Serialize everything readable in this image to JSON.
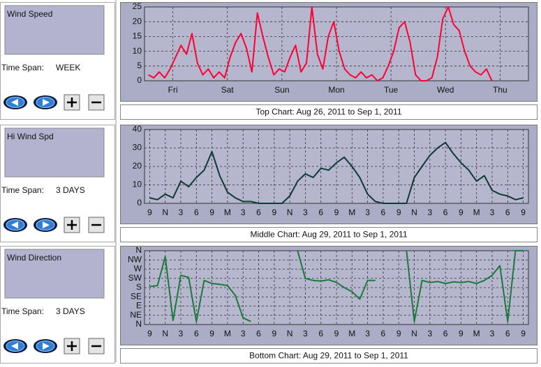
{
  "panels": [
    {
      "sensor_label": "Wind Speed",
      "time_span_label": "Time Span:",
      "time_span": "WEEK",
      "caption": "Top Chart:  Aug 26, 2011  to  Sep 1, 2011",
      "chart": {
        "type": "line",
        "x": [
          -0.45,
          -0.35,
          -0.25,
          -0.15,
          -0.05,
          0.05,
          0.15,
          0.25,
          0.35,
          0.45,
          0.55,
          0.65,
          0.75,
          0.85,
          0.95,
          1.05,
          1.15,
          1.25,
          1.35,
          1.45,
          1.55,
          1.65,
          1.75,
          1.85,
          1.95,
          2.05,
          2.15,
          2.25,
          2.35,
          2.45,
          2.55,
          2.65,
          2.75,
          2.85,
          2.95,
          3.05,
          3.15,
          3.25,
          3.35,
          3.45,
          3.55,
          3.65,
          3.75,
          3.85,
          3.95,
          4.05,
          4.15,
          4.25,
          4.35,
          4.45,
          4.55,
          4.65,
          4.75,
          4.85,
          4.95,
          5.05,
          5.15,
          5.25,
          5.35,
          5.45,
          5.55,
          5.65,
          5.75,
          5.85
        ],
        "series": [
          {
            "color": "#ff0033",
            "values": [
              2,
              1,
              3,
              1,
              4,
              8,
              12,
              9,
              16,
              6,
              2,
              4,
              1,
              3,
              1,
              8,
              13,
              16,
              11,
              3,
              23,
              15,
              8,
              2,
              4,
              3,
              8,
              12,
              3,
              6,
              25,
              9,
              4,
              15,
              20,
              10,
              4,
              2,
              1,
              3,
              1,
              2,
              0,
              1,
              5,
              10,
              18,
              20,
              13,
              2,
              0,
              0,
              1,
              8,
              21,
              25,
              19,
              17,
              10,
              5,
              3,
              2,
              4,
              0
            ]
          }
        ],
        "xlim": [
          -0.52,
          6.52
        ],
        "xticks": [
          {
            "value": 0,
            "label": "Fri"
          },
          {
            "value": 1,
            "label": "Sat"
          },
          {
            "value": 2,
            "label": "Sun"
          },
          {
            "value": 3,
            "label": "Mon"
          },
          {
            "value": 4,
            "label": "Tue"
          },
          {
            "value": 5,
            "label": "Wed"
          },
          {
            "value": 6,
            "label": "Thu"
          }
        ],
        "ylim": [
          0,
          25
        ],
        "yticks": [
          0,
          5,
          10,
          15,
          20,
          25
        ],
        "grid": true
      }
    },
    {
      "sensor_label": "Hi Wind Spd",
      "time_span_label": "Time Span:",
      "time_span": "3 DAYS",
      "caption": "Middle Chart:  Aug 29, 2011  to  Sep 1, 2011",
      "chart": {
        "type": "line",
        "x": [
          0,
          1.5,
          3,
          4.5,
          6,
          7.5,
          9,
          10.5,
          12,
          13.5,
          15,
          16.5,
          18,
          19.5,
          21,
          22.5,
          24,
          25.5,
          27,
          28.5,
          30,
          31.5,
          33,
          34.5,
          36,
          37.5,
          39,
          40.5,
          42,
          43.5,
          45,
          46.5,
          48,
          49.5,
          51,
          52.5,
          54,
          55.5,
          57,
          58.5,
          60,
          61.5,
          63,
          64.5,
          66,
          67.5,
          69,
          70.5,
          72
        ],
        "series": [
          {
            "color": "#0f3a33",
            "values": [
              3,
              2,
              5,
              3,
              12,
              9,
              14,
              18,
              28,
              15,
              6,
              3,
              1,
              1,
              0,
              0,
              0,
              0,
              4,
              12,
              16,
              14,
              19,
              18,
              22,
              25,
              20,
              14,
              5,
              1,
              0,
              0,
              0,
              0,
              14,
              20,
              26,
              30,
              33,
              27,
              22,
              18,
              12,
              15,
              7,
              5,
              4,
              2,
              3
            ]
          }
        ],
        "xlim": [
          -1,
          73
        ],
        "xticks": [
          {
            "value": 0,
            "label": "9"
          },
          {
            "value": 3,
            "label": "N"
          },
          {
            "value": 6,
            "label": "3"
          },
          {
            "value": 9,
            "label": "6"
          },
          {
            "value": 12,
            "label": "9"
          },
          {
            "value": 15,
            "label": "M"
          },
          {
            "value": 18,
            "label": "3"
          },
          {
            "value": 21,
            "label": "6"
          },
          {
            "value": 24,
            "label": "9"
          },
          {
            "value": 27,
            "label": "N"
          },
          {
            "value": 30,
            "label": "3"
          },
          {
            "value": 33,
            "label": "6"
          },
          {
            "value": 36,
            "label": "9"
          },
          {
            "value": 39,
            "label": "M"
          },
          {
            "value": 42,
            "label": "3"
          },
          {
            "value": 45,
            "label": "6"
          },
          {
            "value": 48,
            "label": "9"
          },
          {
            "value": 51,
            "label": "N"
          },
          {
            "value": 54,
            "label": "3"
          },
          {
            "value": 57,
            "label": "6"
          },
          {
            "value": 60,
            "label": "9"
          },
          {
            "value": 63,
            "label": "M"
          },
          {
            "value": 66,
            "label": "3"
          },
          {
            "value": 69,
            "label": "6"
          },
          {
            "value": 72,
            "label": "9"
          }
        ],
        "ylim": [
          0,
          40
        ],
        "yticks": [
          0,
          10,
          20,
          30,
          40
        ],
        "grid": true
      }
    },
    {
      "sensor_label": "Wind Direction",
      "time_span_label": "Time Span:",
      "time_span": "3 DAYS",
      "caption": "Bottom Chart:  Aug 29, 2011  to  Sep 1, 2011",
      "chart": {
        "type": "line",
        "x": [
          0,
          1.5,
          3,
          4.5,
          6,
          7.5,
          9,
          10.5,
          12,
          13.5,
          15,
          16.5,
          18,
          19.5,
          21,
          22.5,
          24,
          25.5,
          27,
          28.5,
          30,
          31.5,
          33,
          34.5,
          36,
          37.5,
          39,
          40.5,
          42,
          43.5,
          45,
          46.5,
          48,
          49.5,
          51,
          52.5,
          54,
          55.5,
          57,
          58.5,
          60,
          61.5,
          63,
          64.5,
          66,
          67.5,
          69,
          70.5,
          72
        ],
        "series": [
          {
            "color": "#1a7a3a",
            "values": [
              185,
              190,
              331,
              20,
              240,
              230,
              15,
              215,
              200,
              196,
              190,
              142,
              33,
              15,
              null,
              null,
              null,
              null,
              null,
              360,
              225,
              215,
              212,
              218,
              205,
              180,
              160,
              124,
              215,
              215,
              null,
              null,
              null,
              360,
              15,
              215,
              205,
              210,
              200,
              208,
              205,
              210,
              200,
              215,
              240,
              287,
              15,
              360,
              360
            ]
          }
        ],
        "xlim": [
          -1,
          73
        ],
        "xticks": [
          {
            "value": 0,
            "label": "9"
          },
          {
            "value": 3,
            "label": "N"
          },
          {
            "value": 6,
            "label": "3"
          },
          {
            "value": 9,
            "label": "6"
          },
          {
            "value": 12,
            "label": "9"
          },
          {
            "value": 15,
            "label": "M"
          },
          {
            "value": 18,
            "label": "3"
          },
          {
            "value": 21,
            "label": "6"
          },
          {
            "value": 24,
            "label": "9"
          },
          {
            "value": 27,
            "label": "N"
          },
          {
            "value": 30,
            "label": "3"
          },
          {
            "value": 33,
            "label": "6"
          },
          {
            "value": 36,
            "label": "9"
          },
          {
            "value": 39,
            "label": "M"
          },
          {
            "value": 42,
            "label": "3"
          },
          {
            "value": 45,
            "label": "6"
          },
          {
            "value": 48,
            "label": "9"
          },
          {
            "value": 51,
            "label": "N"
          },
          {
            "value": 54,
            "label": "3"
          },
          {
            "value": 57,
            "label": "6"
          },
          {
            "value": 60,
            "label": "9"
          },
          {
            "value": 63,
            "label": "M"
          },
          {
            "value": 66,
            "label": "3"
          },
          {
            "value": 69,
            "label": "6"
          },
          {
            "value": 72,
            "label": "9"
          }
        ],
        "ylim": [
          0,
          360
        ],
        "yticks": [
          {
            "value": 0,
            "label": "N"
          },
          {
            "value": 45,
            "label": "NE"
          },
          {
            "value": 90,
            "label": "E"
          },
          {
            "value": 135,
            "label": "SE"
          },
          {
            "value": 180,
            "label": "S"
          },
          {
            "value": 225,
            "label": "SW"
          },
          {
            "value": 270,
            "label": "W"
          },
          {
            "value": 315,
            "label": "NW"
          },
          {
            "value": 360,
            "label": "N"
          }
        ],
        "grid": true
      }
    }
  ]
}
